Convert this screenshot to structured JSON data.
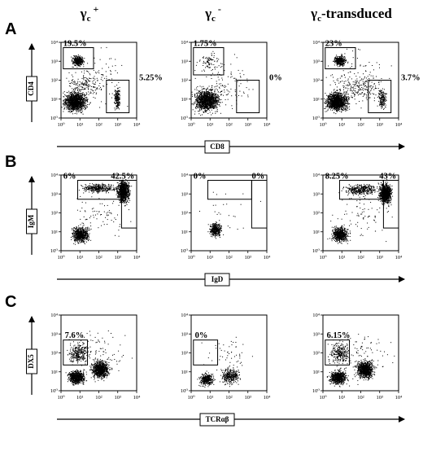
{
  "columns": [
    {
      "base": "γ",
      "sub": "c",
      "sup": "+",
      "suffix": ""
    },
    {
      "base": "γ",
      "sub": "c",
      "sup": "-",
      "suffix": ""
    },
    {
      "base": "γ",
      "sub": "c",
      "sup": "",
      "suffix": "-transduced"
    }
  ],
  "tick_labels": [
    "10⁰",
    "10¹",
    "10²",
    "10³",
    "10⁴"
  ],
  "rows": [
    {
      "letter": "A",
      "y_marker": "CD4",
      "x_marker": "CD8",
      "plots": [
        {
          "gates": [
            {
              "label": "19.5%"
            },
            {
              "label": "5.25%"
            }
          ]
        },
        {
          "gates": [
            {
              "label": "1.75%"
            },
            {
              "label": "0%"
            }
          ]
        },
        {
          "gates": [
            {
              "label": "23%"
            },
            {
              "label": "3.7%"
            }
          ]
        }
      ]
    },
    {
      "letter": "B",
      "y_marker": "IgM",
      "x_marker": "IgD",
      "plots": [
        {
          "gates": [
            {
              "label": "6%"
            },
            {
              "label": "42.5%"
            }
          ]
        },
        {
          "gates": [
            {
              "label": "0%"
            },
            {
              "label": "0%"
            }
          ]
        },
        {
          "gates": [
            {
              "label": "8.25%"
            },
            {
              "label": "43%"
            }
          ]
        }
      ]
    },
    {
      "letter": "C",
      "y_marker": "DX5",
      "x_marker": "TCRαβ",
      "plots": [
        {
          "gates": [
            {
              "label": "7.6%"
            }
          ]
        },
        {
          "gates": [
            {
              "label": "0%"
            }
          ]
        },
        {
          "gates": [
            {
              "label": "6.15%"
            }
          ]
        }
      ]
    }
  ]
}
